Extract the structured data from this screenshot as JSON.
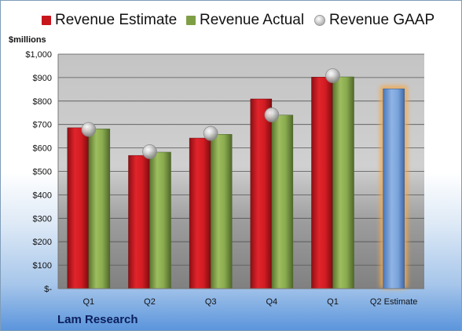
{
  "legend": {
    "estimate_label": "Revenue Estimate",
    "actual_label": "Revenue Actual",
    "gaap_label": "Revenue GAAP"
  },
  "unit_label": "$millions",
  "brand": "Lam Research",
  "colors": {
    "estimate": "#c8161d",
    "actual": "#7f9f45",
    "gaap": "#b8b8b8",
    "forecast": "#6d97d4",
    "forecast_glow": "#f3a84c"
  },
  "chart_data": {
    "type": "bar",
    "categories": [
      "Q1",
      "Q2",
      "Q3",
      "Q4",
      "Q1",
      "Q2 Estimate"
    ],
    "series": [
      {
        "name": "Revenue Estimate",
        "values": [
          686,
          568,
          642,
          809,
          902,
          852
        ]
      },
      {
        "name": "Revenue Actual",
        "values": [
          681,
          582,
          658,
          740,
          903,
          null
        ]
      },
      {
        "name": "Revenue GAAP",
        "values": [
          679,
          584,
          662,
          741,
          908,
          null
        ]
      }
    ],
    "ylim": [
      0,
      1000
    ],
    "yticks": [
      0,
      100,
      200,
      300,
      400,
      500,
      600,
      700,
      800,
      900,
      1000
    ],
    "ytick_labels": [
      "$-",
      "$100",
      "$200",
      "$300",
      "$400",
      "$500",
      "$600",
      "$700",
      "$800",
      "$900",
      "$1,000"
    ],
    "ylabel": "$millions",
    "legend_position": "top",
    "grid": true
  }
}
